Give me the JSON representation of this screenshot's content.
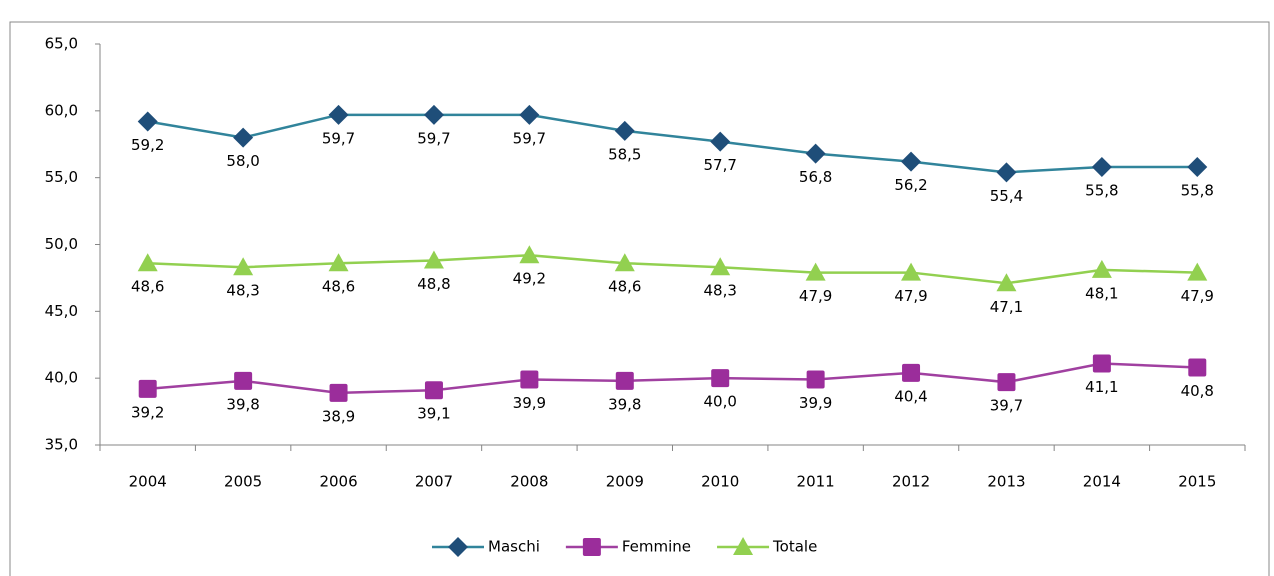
{
  "chart_data": {
    "type": "line",
    "categories": [
      "2004",
      "2005",
      "2006",
      "2007",
      "2008",
      "2009",
      "2010",
      "2011",
      "2012",
      "2013",
      "2014",
      "2015"
    ],
    "ylim": [
      35,
      65
    ],
    "yticks": [
      {
        "value": 35,
        "label": "35,0"
      },
      {
        "value": 40,
        "label": "40,0"
      },
      {
        "value": 45,
        "label": "45,0"
      },
      {
        "value": 50,
        "label": "50,0"
      },
      {
        "value": 55,
        "label": "55,0"
      },
      {
        "value": 60,
        "label": "60,0"
      },
      {
        "value": 65,
        "label": "65,0"
      }
    ],
    "grid": false,
    "legend": "bottom",
    "series": [
      {
        "name": "Maschi",
        "color": "#31849b",
        "marker_color": "#1f4e79",
        "marker": "diamond",
        "values": [
          59.2,
          58.0,
          59.7,
          59.7,
          59.7,
          58.5,
          57.7,
          56.8,
          56.2,
          55.4,
          55.8,
          55.8
        ],
        "value_labels": [
          "59,2",
          "58,0",
          "59,7",
          "59,7",
          "59,7",
          "58,5",
          "57,7",
          "56,8",
          "56,2",
          "55,4",
          "55,8",
          "55,8"
        ]
      },
      {
        "name": "Femmine",
        "color": "#a040a0",
        "marker_color": "#9b2d9b",
        "marker": "square",
        "values": [
          39.2,
          39.8,
          38.9,
          39.1,
          39.9,
          39.8,
          40.0,
          39.9,
          40.4,
          39.7,
          41.1,
          40.8
        ],
        "value_labels": [
          "39,2",
          "39,8",
          "38,9",
          "39,1",
          "39,9",
          "39,8",
          "40,0",
          "39,9",
          "40,4",
          "39,7",
          "41,1",
          "40,8"
        ]
      },
      {
        "name": "Totale",
        "color": "#92d050",
        "marker_color": "#92d050",
        "marker": "triangle",
        "values": [
          48.6,
          48.3,
          48.6,
          48.8,
          49.2,
          48.6,
          48.3,
          47.9,
          47.9,
          47.1,
          48.1,
          47.9
        ],
        "value_labels": [
          "48,6",
          "48,3",
          "48,6",
          "48,8",
          "49,2",
          "48,6",
          "48,3",
          "47,9",
          "47,9",
          "47,1",
          "48,1",
          "47,9"
        ]
      }
    ]
  }
}
